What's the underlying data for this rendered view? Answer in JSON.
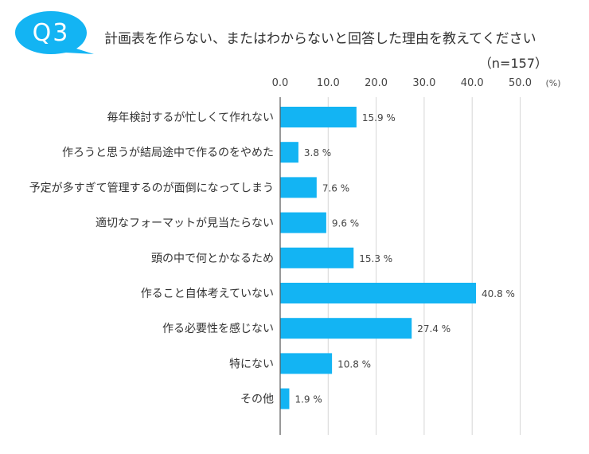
{
  "header": {
    "badge": "Q3",
    "question": "計画表を作らない、またはわからないと回答した理由を教えてください",
    "sample_size": "（n=157）"
  },
  "colors": {
    "accent": "#13b4f3",
    "grid": "#d6d6d6",
    "axis": "#555555"
  },
  "chart_data": {
    "type": "bar",
    "orientation": "horizontal",
    "title": "計画表を作らない、またはわからないと回答した理由を教えてください",
    "categories": [
      "毎年検討するが忙しくて作れない",
      "作ろうと思うが結局途中で作るのをやめた",
      "予定が多すぎて管理するのが面倒になってしまう",
      "適切なフォーマットが見当たらない",
      "頭の中で何とかなるため",
      "作ること自体考えていない",
      "作る必要性を感じない",
      "特にない",
      "その他"
    ],
    "values": [
      15.9,
      3.8,
      7.6,
      9.6,
      15.3,
      40.8,
      27.4,
      10.8,
      1.9
    ],
    "value_labels": [
      "15.9 %",
      "3.8 %",
      "7.6 %",
      "9.6 %",
      "15.3 %",
      "40.8 %",
      "27.4 %",
      "10.8 %",
      "1.9 %"
    ],
    "xlim": [
      0,
      50
    ],
    "ticks": [
      0,
      10,
      20,
      30,
      40,
      50
    ],
    "tick_labels": [
      "0.0",
      "10.0",
      "20.0",
      "30.0",
      "40.0",
      "50.0"
    ],
    "unit": "(%)",
    "grid": true
  }
}
